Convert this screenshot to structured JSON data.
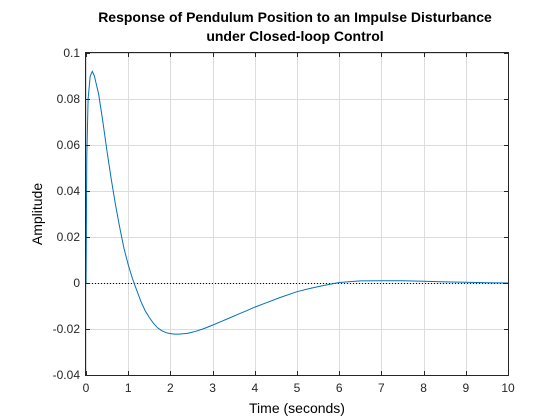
{
  "chart_data": {
    "type": "line",
    "title_lines": [
      "Response of Pendulum Position to an Impulse Disturbance",
      "under Closed-loop Control"
    ],
    "xlabel": "Time (seconds)",
    "ylabel": "Amplitude",
    "xlim": [
      0,
      10
    ],
    "ylim": [
      -0.04,
      0.1
    ],
    "x_ticks": [
      0,
      1,
      2,
      3,
      4,
      5,
      6,
      7,
      8,
      9,
      10
    ],
    "x_tick_labels": [
      "0",
      "1",
      "2",
      "3",
      "4",
      "5",
      "6",
      "7",
      "8",
      "9",
      "10"
    ],
    "y_ticks": [
      -0.04,
      -0.02,
      0,
      0.02,
      0.04,
      0.06,
      0.08,
      0.1
    ],
    "y_tick_labels": [
      "-0.04",
      "-0.02",
      "0",
      "0.02",
      "0.04",
      "0.06",
      "0.08",
      "0.1"
    ],
    "grid": true,
    "reference_line": {
      "y": 0,
      "style": "dotted",
      "color": "#000000"
    },
    "series": [
      {
        "color": "#0072bd",
        "x": [
          0,
          0.02,
          0.05,
          0.1,
          0.15,
          0.2,
          0.3,
          0.4,
          0.5,
          0.6,
          0.7,
          0.8,
          0.9,
          1.0,
          1.1,
          1.2,
          1.3,
          1.4,
          1.5,
          1.6,
          1.7,
          1.8,
          1.9,
          2.0,
          2.1,
          2.2,
          2.3,
          2.4,
          2.5,
          2.6,
          2.8,
          3.0,
          3.2,
          3.4,
          3.6,
          3.8,
          4.0,
          4.3,
          4.6,
          5.0,
          5.3,
          5.6,
          6.0,
          6.5,
          7.0,
          7.5,
          8.0,
          8.5,
          9.0,
          9.5,
          10.0
        ],
        "y": [
          0,
          0.055,
          0.08,
          0.09,
          0.092,
          0.09,
          0.082,
          0.07,
          0.057,
          0.045,
          0.034,
          0.024,
          0.015,
          0.008,
          0.002,
          -0.003,
          -0.008,
          -0.012,
          -0.015,
          -0.0175,
          -0.0195,
          -0.0208,
          -0.0216,
          -0.022,
          -0.0222,
          -0.0222,
          -0.0221,
          -0.0219,
          -0.0215,
          -0.021,
          -0.0198,
          -0.0183,
          -0.0168,
          -0.0152,
          -0.0136,
          -0.0121,
          -0.0105,
          -0.0084,
          -0.0063,
          -0.0038,
          -0.0024,
          -0.0012,
          0.0002,
          0.0009,
          0.001,
          0.001,
          0.0008,
          0.0005,
          0.0003,
          0.0001,
          0.0
        ]
      }
    ]
  }
}
